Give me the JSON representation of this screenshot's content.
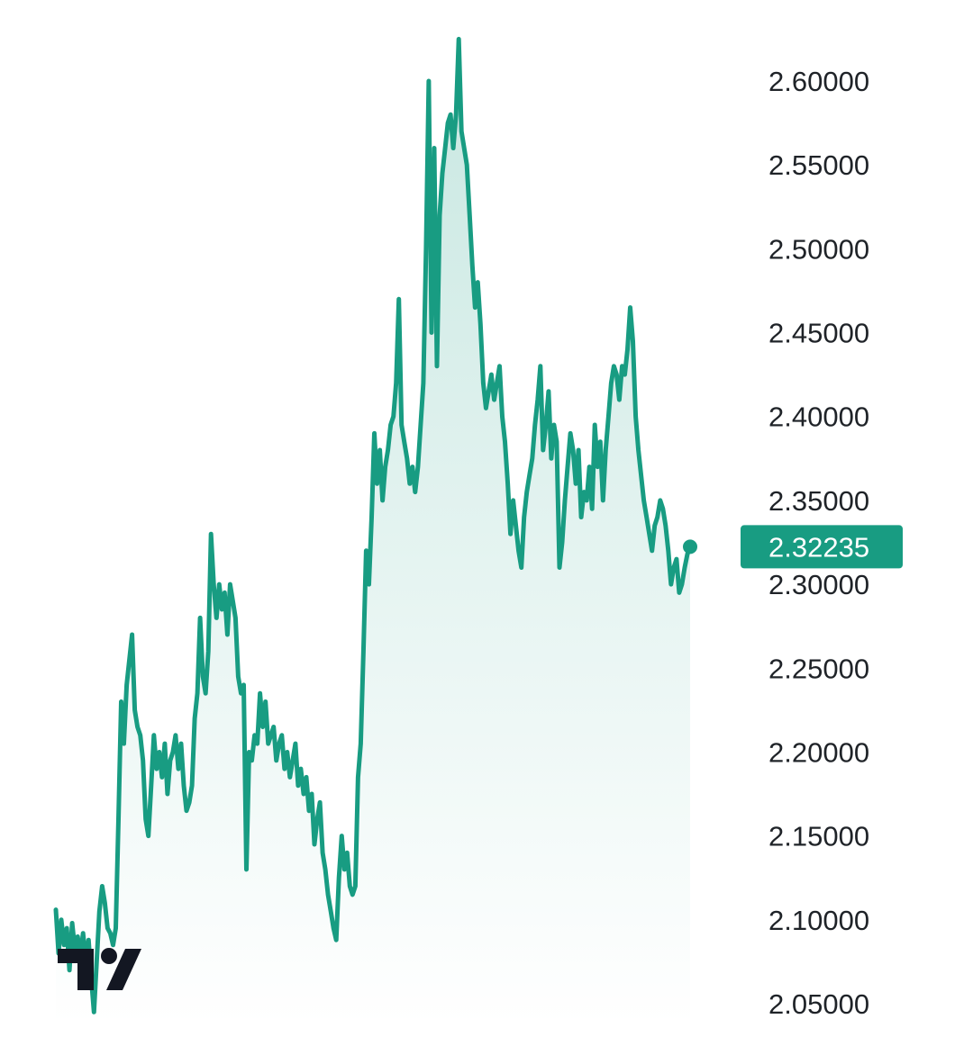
{
  "chart_data": {
    "type": "area",
    "title": "",
    "xlabel": "",
    "ylabel": "",
    "ylim": [
      2.03,
      2.64
    ],
    "y_ticks": [
      "2.60000",
      "2.55000",
      "2.50000",
      "2.45000",
      "2.40000",
      "2.35000",
      "2.30000",
      "2.25000",
      "2.20000",
      "2.15000",
      "2.10000",
      "2.05000"
    ],
    "grid": false,
    "legend": "none",
    "series": [
      {
        "color": "#189c82",
        "fill_color": "#189c82",
        "values": [
          2.106,
          2.08,
          2.1,
          2.085,
          2.095,
          2.07,
          2.098,
          2.082,
          2.09,
          2.078,
          2.092,
          2.075,
          2.088,
          2.065,
          2.045,
          2.075,
          2.105,
          2.12,
          2.11,
          2.095,
          2.092,
          2.085,
          2.095,
          2.16,
          2.23,
          2.205,
          2.24,
          2.255,
          2.27,
          2.225,
          2.215,
          2.21,
          2.195,
          2.16,
          2.15,
          2.18,
          2.21,
          2.19,
          2.2,
          2.185,
          2.205,
          2.175,
          2.195,
          2.2,
          2.21,
          2.19,
          2.205,
          2.18,
          2.165,
          2.17,
          2.18,
          2.22,
          2.235,
          2.28,
          2.245,
          2.235,
          2.26,
          2.33,
          2.3,
          2.28,
          2.3,
          2.285,
          2.295,
          2.27,
          2.3,
          2.29,
          2.28,
          2.245,
          2.235,
          2.24,
          2.13,
          2.2,
          2.195,
          2.21,
          2.205,
          2.235,
          2.215,
          2.23,
          2.205,
          2.21,
          2.215,
          2.195,
          2.205,
          2.21,
          2.19,
          2.2,
          2.185,
          2.195,
          2.205,
          2.18,
          2.19,
          2.175,
          2.185,
          2.165,
          2.175,
          2.145,
          2.16,
          2.17,
          2.14,
          2.13,
          2.115,
          2.105,
          2.095,
          2.088,
          2.125,
          2.15,
          2.13,
          2.14,
          2.12,
          2.115,
          2.12,
          2.185,
          2.205,
          2.26,
          2.32,
          2.3,
          2.34,
          2.39,
          2.36,
          2.38,
          2.35,
          2.37,
          2.38,
          2.395,
          2.4,
          2.42,
          2.47,
          2.395,
          2.385,
          2.375,
          2.36,
          2.37,
          2.355,
          2.37,
          2.395,
          2.42,
          2.5,
          2.6,
          2.45,
          2.56,
          2.43,
          2.52,
          2.545,
          2.56,
          2.575,
          2.58,
          2.56,
          2.58,
          2.625,
          2.57,
          2.56,
          2.55,
          2.52,
          2.49,
          2.465,
          2.48,
          2.455,
          2.42,
          2.405,
          2.415,
          2.425,
          2.41,
          2.42,
          2.43,
          2.4,
          2.385,
          2.36,
          2.33,
          2.35,
          2.335,
          2.32,
          2.31,
          2.34,
          2.355,
          2.365,
          2.375,
          2.395,
          2.41,
          2.43,
          2.38,
          2.395,
          2.415,
          2.375,
          2.395,
          2.385,
          2.31,
          2.325,
          2.35,
          2.37,
          2.39,
          2.38,
          2.36,
          2.38,
          2.34,
          2.355,
          2.35,
          2.37,
          2.345,
          2.395,
          2.37,
          2.385,
          2.35,
          2.38,
          2.4,
          2.42,
          2.43,
          2.425,
          2.41,
          2.43,
          2.425,
          2.44,
          2.465,
          2.445,
          2.4,
          2.38,
          2.365,
          2.35,
          2.34,
          2.33,
          2.32,
          2.335,
          2.34,
          2.35,
          2.345,
          2.335,
          2.32,
          2.3,
          2.31,
          2.315,
          2.295,
          2.3,
          2.31,
          2.318,
          2.32235
        ]
      }
    ],
    "last_value": "2.32235"
  }
}
